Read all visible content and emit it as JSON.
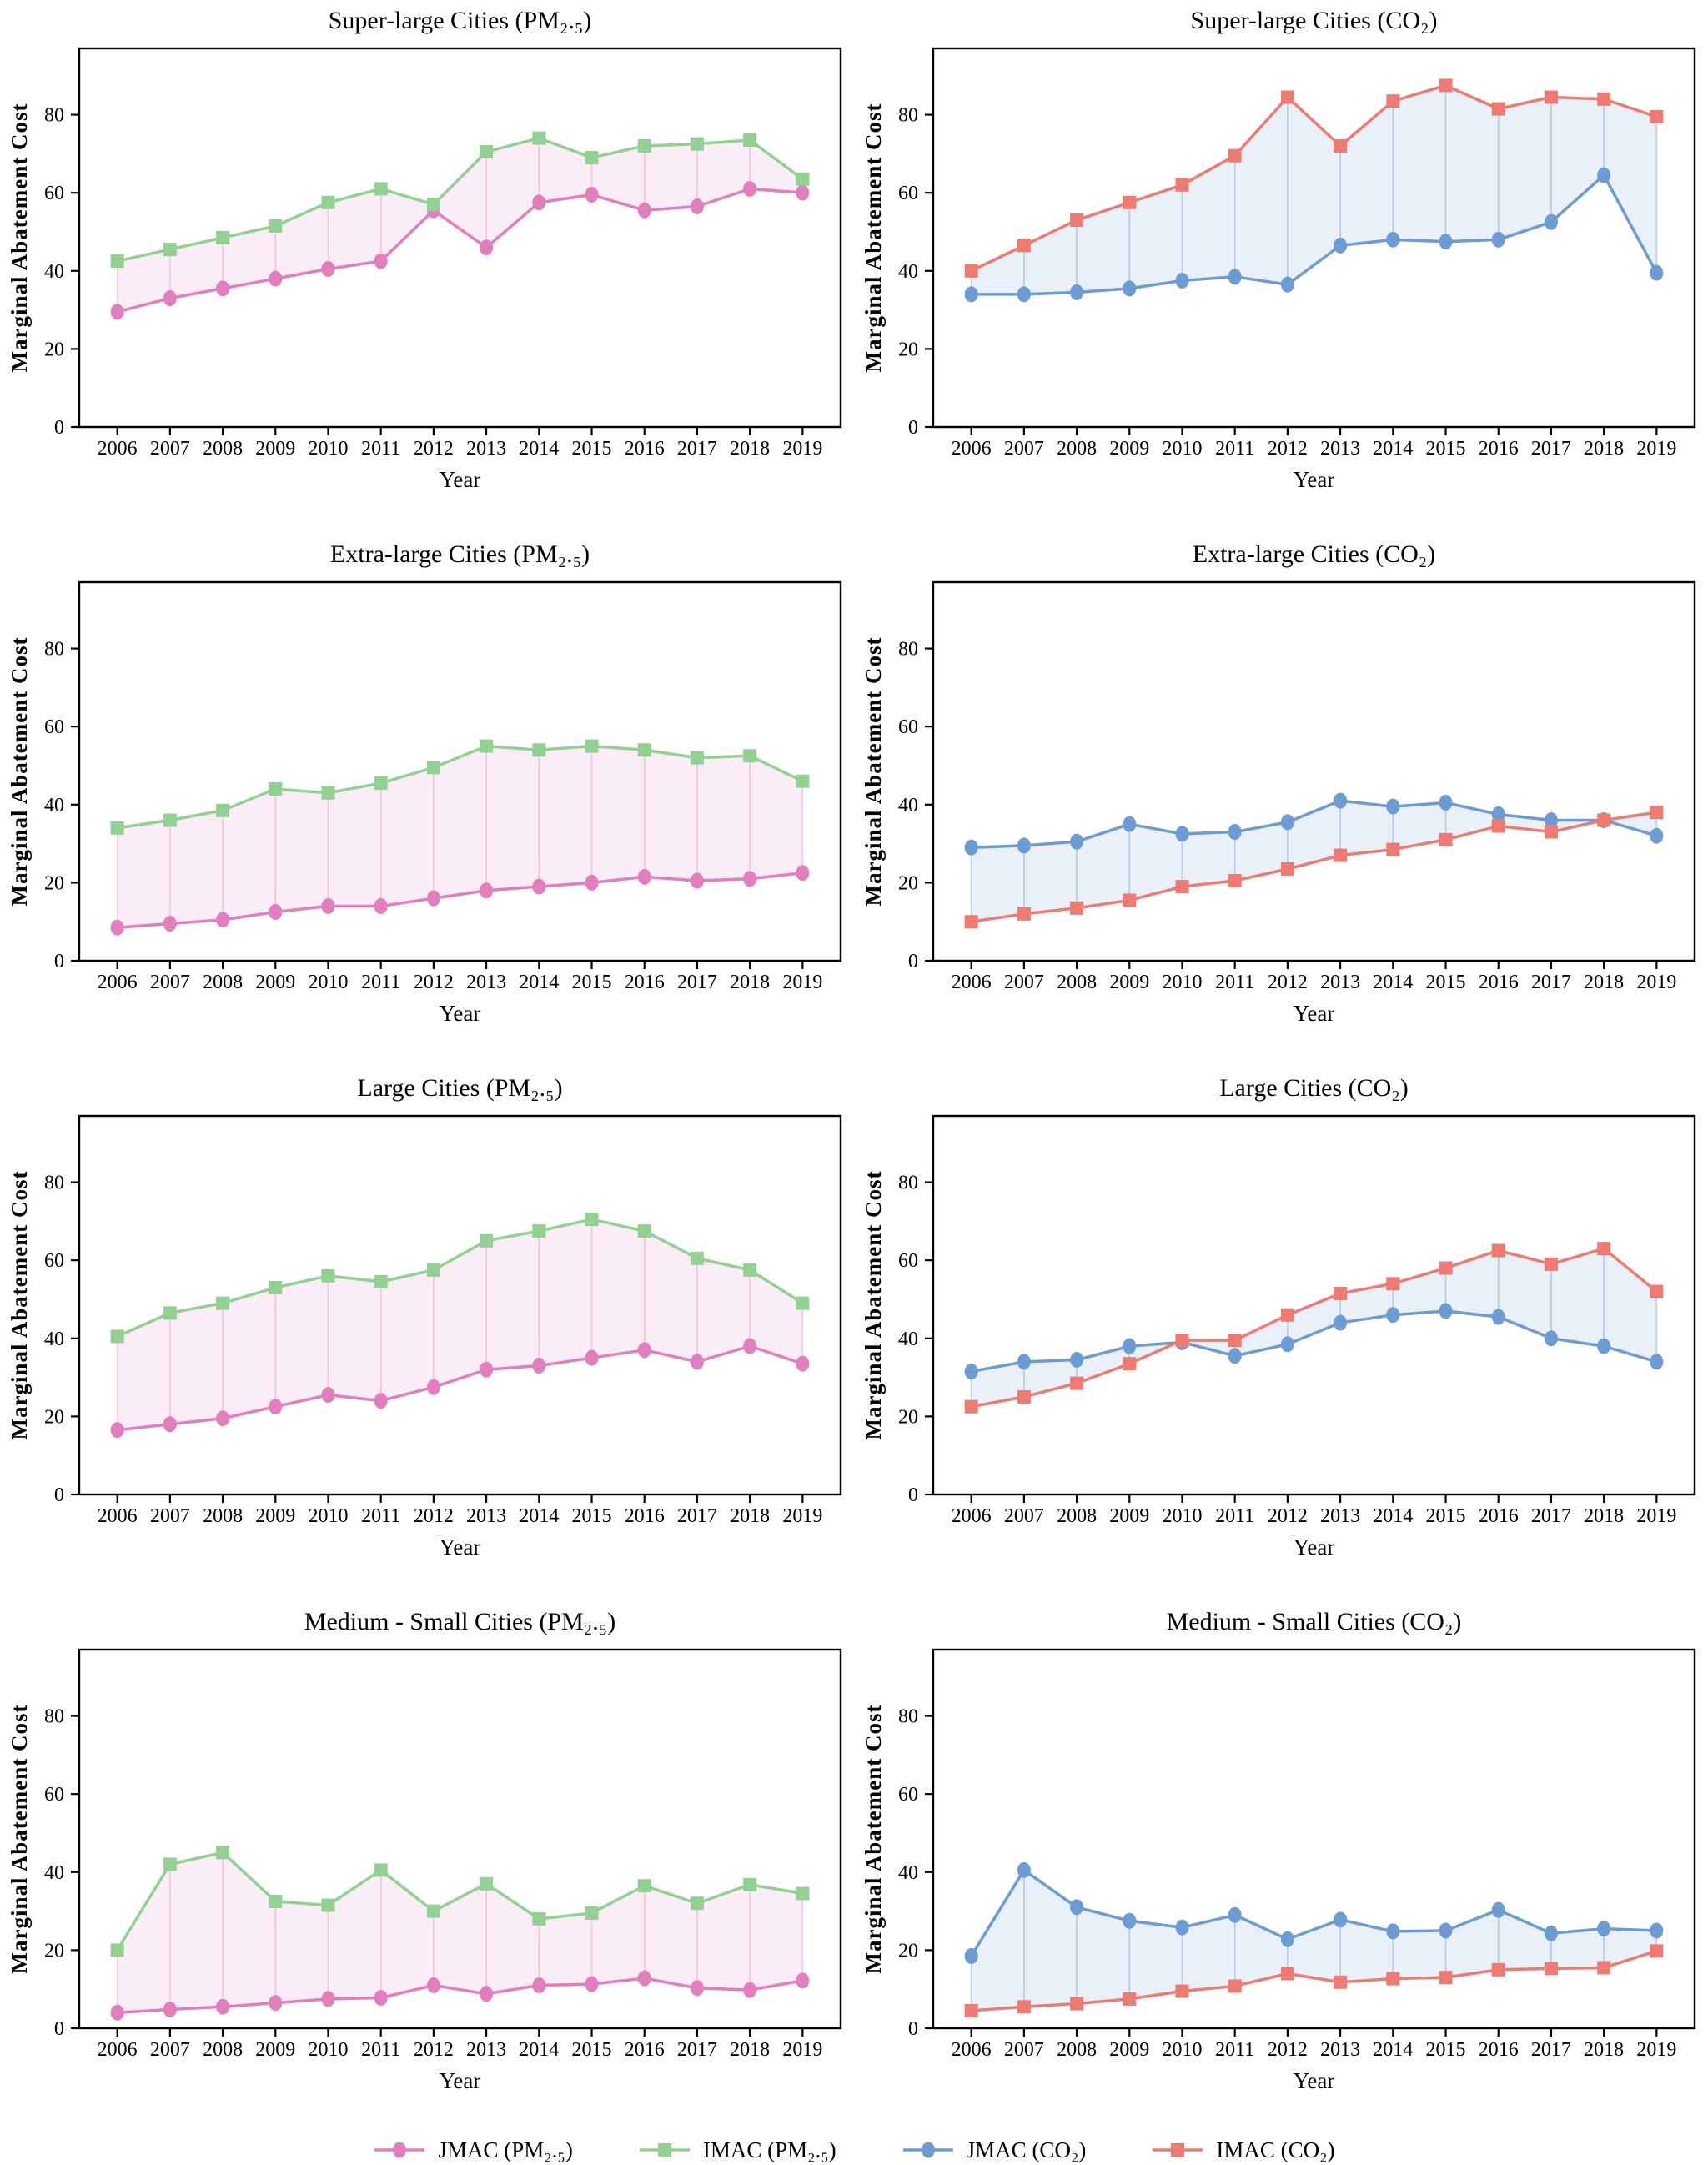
{
  "axes": {
    "xlabel": "Year",
    "ylabel": "Marginal Abatement Cost",
    "yticks": [
      0,
      20,
      40,
      60,
      80
    ],
    "ylim": [
      0,
      97
    ],
    "grid": false
  },
  "years": [
    "2006",
    "2007",
    "2008",
    "2009",
    "2010",
    "2011",
    "2012",
    "2013",
    "2014",
    "2015",
    "2016",
    "2017",
    "2018",
    "2019"
  ],
  "palettes": {
    "pm25": {
      "series_colors": [
        "#e27ebe",
        "#92d192"
      ],
      "band_fill": "rgba(226,126,190,0.14)",
      "connector": "rgba(226,126,190,0.38)"
    },
    "co2": {
      "series_colors": [
        "#6d9bd3",
        "#ee7b72"
      ],
      "band_fill": "rgba(109,155,211,0.15)",
      "connector": "rgba(109,155,211,0.45)"
    }
  },
  "chart_data": [
    {
      "type": "line",
      "title": "Super-large Cities (PM₂.₅)",
      "palette": "pm25",
      "series": [
        {
          "name": "JMAC (PM₂.₅)",
          "marker": "circle",
          "values": [
            29.5,
            33,
            35.5,
            38,
            40.5,
            42.5,
            55.5,
            46,
            57.5,
            59.5,
            55.5,
            56.5,
            61,
            60
          ]
        },
        {
          "name": "IMAC (PM₂.₅)",
          "marker": "square",
          "values": [
            42.5,
            45.5,
            48.5,
            51.5,
            57.5,
            61,
            57,
            70.5,
            74,
            69,
            72,
            72.5,
            73.5,
            63.5
          ]
        }
      ]
    },
    {
      "type": "line",
      "title": "Super-large Cities (CO₂)",
      "palette": "co2",
      "series": [
        {
          "name": "JMAC (CO₂)",
          "marker": "circle",
          "values": [
            34,
            34,
            34.5,
            35.5,
            37.5,
            38.5,
            36.5,
            46.5,
            48,
            47.5,
            48,
            52.5,
            64.5,
            39.5
          ]
        },
        {
          "name": "IMAC (CO₂)",
          "marker": "square",
          "values": [
            40,
            46.5,
            53,
            57.5,
            62,
            69.5,
            84.5,
            72,
            83.5,
            87.5,
            81.5,
            84.5,
            84,
            79.5
          ]
        }
      ]
    },
    {
      "type": "line",
      "title": "Extra-large Cities (PM₂.₅)",
      "palette": "pm25",
      "series": [
        {
          "name": "JMAC (PM₂.₅)",
          "marker": "circle",
          "values": [
            8.5,
            9.5,
            10.5,
            12.5,
            14,
            14,
            16,
            18,
            19,
            20,
            21.5,
            20.5,
            21,
            22.5
          ]
        },
        {
          "name": "IMAC (PM₂.₅)",
          "marker": "square",
          "values": [
            34,
            36,
            38.5,
            44,
            43,
            45.5,
            49.5,
            55,
            54,
            55,
            54,
            52,
            52.5,
            46
          ]
        }
      ]
    },
    {
      "type": "line",
      "title": "Extra-large Cities (CO₂)",
      "palette": "co2",
      "series": [
        {
          "name": "JMAC (CO₂)",
          "marker": "circle",
          "values": [
            29,
            29.5,
            30.5,
            35,
            32.5,
            33,
            35.5,
            41,
            39.5,
            40.5,
            37.5,
            36,
            36,
            32
          ]
        },
        {
          "name": "IMAC (CO₂)",
          "marker": "square",
          "values": [
            10,
            12,
            13.5,
            15.5,
            19,
            20.5,
            23.5,
            27,
            28.5,
            31,
            34.5,
            33,
            36,
            38
          ]
        }
      ]
    },
    {
      "type": "line",
      "title": "Large Cities (PM₂.₅)",
      "palette": "pm25",
      "series": [
        {
          "name": "JMAC (PM₂.₅)",
          "marker": "circle",
          "values": [
            16.5,
            18,
            19.5,
            22.5,
            25.5,
            24,
            27.5,
            32,
            33,
            35,
            37,
            34,
            38,
            33.5
          ]
        },
        {
          "name": "IMAC (PM₂.₅)",
          "marker": "square",
          "values": [
            40.5,
            46.5,
            49,
            53,
            56,
            54.5,
            57.5,
            65,
            67.5,
            70.5,
            67.5,
            60.5,
            57.5,
            49
          ]
        }
      ]
    },
    {
      "type": "line",
      "title": "Large Cities (CO₂)",
      "palette": "co2",
      "series": [
        {
          "name": "JMAC (CO₂)",
          "marker": "circle",
          "values": [
            31.5,
            34,
            34.5,
            38,
            39,
            35.5,
            38.5,
            44,
            46,
            47,
            45.5,
            40,
            38,
            34
          ]
        },
        {
          "name": "IMAC (CO₂)",
          "marker": "square",
          "values": [
            22.5,
            25,
            28.5,
            33.5,
            39.5,
            39.5,
            46,
            51.5,
            54,
            58,
            62.5,
            59,
            63,
            52
          ]
        }
      ]
    },
    {
      "type": "line",
      "title": "Medium - Small Cities (PM₂.₅)",
      "palette": "pm25",
      "series": [
        {
          "name": "JMAC (PM₂.₅)",
          "marker": "circle",
          "values": [
            4,
            4.8,
            5.5,
            6.5,
            7.5,
            7.8,
            11,
            8.8,
            11,
            11.3,
            12.8,
            10.3,
            9.8,
            12.2
          ]
        },
        {
          "name": "IMAC (PM₂.₅)",
          "marker": "square",
          "values": [
            20,
            42,
            45,
            32.5,
            31.5,
            40.5,
            30,
            37,
            28,
            29.5,
            36.5,
            32,
            36.8,
            34.5
          ]
        }
      ]
    },
    {
      "type": "line",
      "title": "Medium - Small Cities (CO₂)",
      "palette": "co2",
      "series": [
        {
          "name": "JMAC (CO₂)",
          "marker": "circle",
          "values": [
            18.5,
            40.5,
            31,
            27.5,
            25.8,
            29,
            22.8,
            27.8,
            24.8,
            25,
            30.3,
            24.3,
            25.5,
            25
          ]
        },
        {
          "name": "IMAC (CO₂)",
          "marker": "square",
          "values": [
            4.5,
            5.5,
            6.3,
            7.5,
            9.5,
            10.8,
            14,
            11.8,
            12.7,
            13,
            15,
            15.3,
            15.5,
            19.8
          ]
        }
      ]
    }
  ],
  "legend": {
    "items": [
      {
        "label": "JMAC (PM₂.₅)",
        "color": "#e27ebe",
        "marker": "circle"
      },
      {
        "label": "IMAC (PM₂.₅)",
        "color": "#92d192",
        "marker": "square"
      },
      {
        "label": "JMAC (CO₂)",
        "color": "#6d9bd3",
        "marker": "circle"
      },
      {
        "label": "IMAC (CO₂)",
        "color": "#ee7b72",
        "marker": "square"
      }
    ]
  }
}
